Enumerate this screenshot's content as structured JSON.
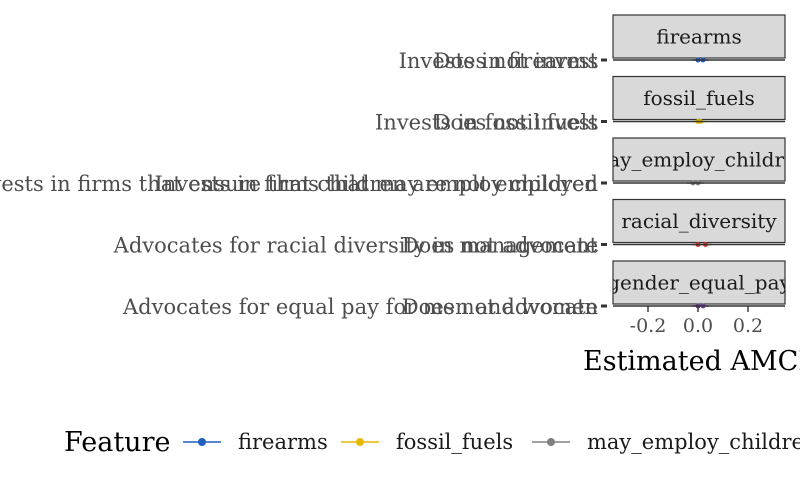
{
  "chart_data": {
    "type": "scatter",
    "title": "",
    "xlabel": "Estimated AMCE",
    "ylabel": "",
    "xlim": [
      -0.32,
      0.32
    ],
    "x_ticks": [
      -0.2,
      0.0,
      0.2
    ],
    "x_tick_labels": [
      "-0.2",
      "0.0",
      "0.2"
    ],
    "grid": false,
    "legend_position": "bottom",
    "legend_title": "Feature",
    "facets": [
      {
        "strip": "firearms",
        "color": "#1f5fbf",
        "levels": [
          {
            "label": "Does not invest",
            "value": 0.0
          },
          {
            "label": "Invests in firearms",
            "value": 0.02
          }
        ]
      },
      {
        "strip": "fossil_fuels",
        "color": "#e6b800",
        "levels": [
          {
            "label": "Does not invest",
            "value": 0.0
          },
          {
            "label": "Invests in fossil fuels",
            "value": 0.01
          }
        ]
      },
      {
        "strip": "may_employ_children",
        "color": "#808080",
        "levels": [
          {
            "label": "Invests in firms that ensure that children are not employed",
            "value": 0.0
          },
          {
            "label": "Invests in firms that may employ children",
            "value": -0.02
          }
        ]
      },
      {
        "strip": "racial_diversity",
        "color": "#c0392b",
        "levels": [
          {
            "label": "Does not advocate",
            "value": 0.0
          },
          {
            "label": "Advocates for racial diversity in management",
            "value": 0.03
          }
        ]
      },
      {
        "strip": "gender_equal_pay",
        "color": "#7b3fa0",
        "levels": [
          {
            "label": "Does not advocate",
            "value": 0.0
          },
          {
            "label": "Advocates for equal pay for men and women",
            "value": 0.02
          }
        ]
      }
    ],
    "legend_entries": [
      {
        "label": "firearms",
        "color": "#1f5fbf"
      },
      {
        "label": "fossil_fuels",
        "color": "#e6b800"
      },
      {
        "label": "may_employ_children",
        "color": "#808080"
      }
    ]
  }
}
